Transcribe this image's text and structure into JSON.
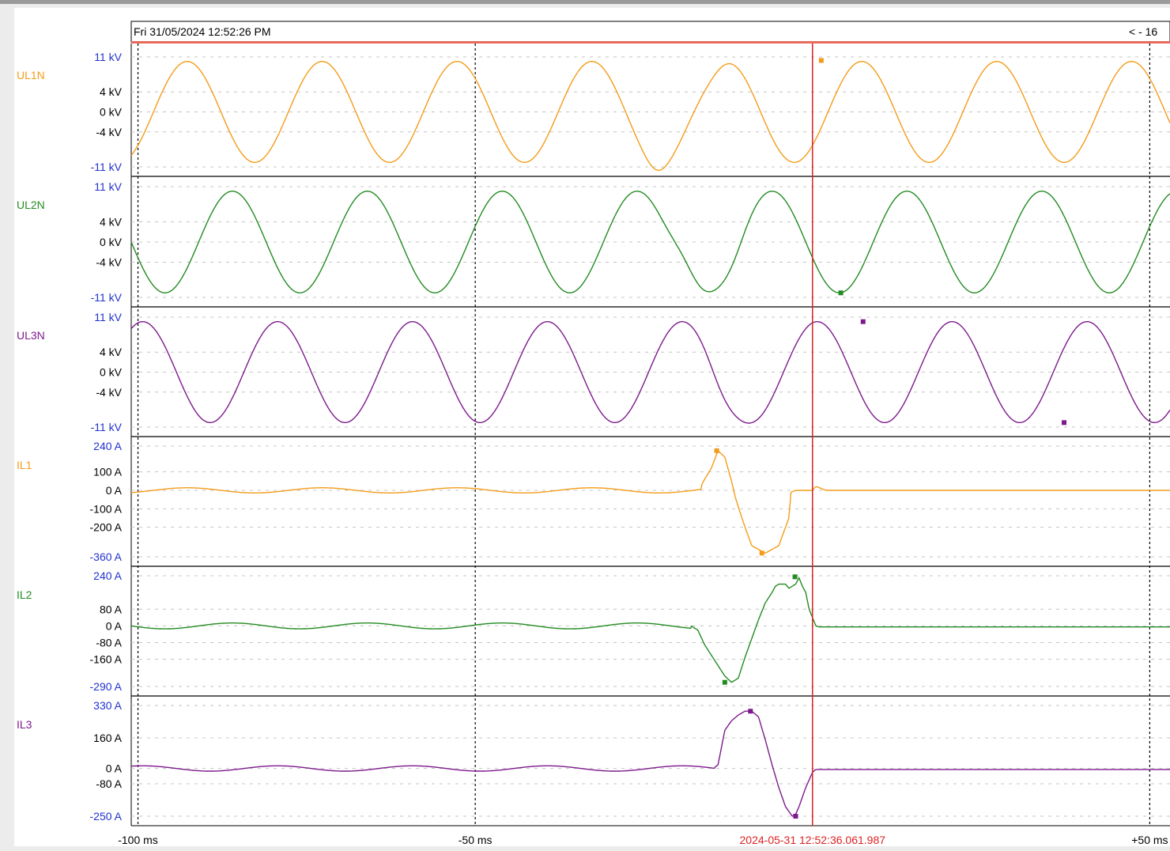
{
  "header": {
    "timestamp": "Fri 31/05/2024 12:52:26 PM",
    "nav": "< - 16"
  },
  "cursor": {
    "label": "2024-05-31 12:52:36.061.987",
    "time_ms": 0,
    "color": "#dd2222"
  },
  "chart_data": {
    "type": "line",
    "x_unit": "ms",
    "xlim": [
      -101,
      53
    ],
    "x_ticks": [
      {
        "value": -100,
        "label": "-100 ms"
      },
      {
        "value": -50,
        "label": "-50 ms"
      },
      {
        "value": 50,
        "label": "+50 ms"
      }
    ],
    "channels": [
      {
        "name": "UL1N",
        "color": "#f39c1a",
        "ylim": [
          -11,
          11
        ],
        "ticks": [
          {
            "v": 11,
            "label": "11 kV",
            "color": "#2233cc"
          },
          {
            "v": 4,
            "label": "4 kV",
            "color": "#000000"
          },
          {
            "v": 0,
            "label": "0 kV",
            "color": "#000000"
          },
          {
            "v": -4,
            "label": "-4 kV",
            "color": "#000000"
          },
          {
            "v": -11,
            "label": "-11 kV",
            "color": "#2233cc"
          }
        ],
        "kind": "sine",
        "amp": 10.1,
        "period": 20,
        "phase": -17.7,
        "dist": [
          {
            "x": -23,
            "y": -1.6,
            "w": 2.2
          },
          {
            "x": -15,
            "y": -1.2,
            "w": 2.5
          }
        ],
        "markers": [
          {
            "x": 1.3,
            "y": 10.3
          }
        ]
      },
      {
        "name": "UL2N",
        "color": "#228b22",
        "ylim": [
          -11,
          11
        ],
        "ticks": [
          {
            "v": 11,
            "label": "11 kV",
            "color": "#2233cc"
          },
          {
            "v": 4,
            "label": "4 kV",
            "color": "#000000"
          },
          {
            "v": 0,
            "label": "0 kV",
            "color": "#000000"
          },
          {
            "v": -4,
            "label": "-4 kV",
            "color": "#000000"
          },
          {
            "v": -11,
            "label": "-11 kV",
            "color": "#2233cc"
          }
        ],
        "kind": "sine",
        "amp": 10.1,
        "period": 20,
        "phase": -11.0,
        "dist": [
          {
            "x": -19,
            "y": 2.6,
            "w": 2.5
          },
          {
            "x": -12,
            "y": -1.8,
            "w": 2.5
          }
        ],
        "markers": [
          {
            "x": 4.2,
            "y": -10.1
          }
        ]
      },
      {
        "name": "UL3N",
        "color": "#7d1a8c",
        "ylim": [
          -11,
          11
        ],
        "ticks": [
          {
            "v": 11,
            "label": "11 kV",
            "color": "#2233cc"
          },
          {
            "v": 4,
            "label": "4 kV",
            "color": "#000000"
          },
          {
            "v": 0,
            "label": "0 kV",
            "color": "#000000"
          },
          {
            "v": -4,
            "label": "-4 kV",
            "color": "#000000"
          },
          {
            "v": -11,
            "label": "-11 kV",
            "color": "#2233cc"
          }
        ],
        "kind": "sine",
        "amp": 10.1,
        "period": 20,
        "phase": -4.3,
        "dist": [
          {
            "x": -13.5,
            "y": -1.6,
            "w": 2.5
          }
        ],
        "markers": [
          {
            "x": 7.5,
            "y": 10.1
          },
          {
            "x": 37.3,
            "y": -10.1
          }
        ]
      },
      {
        "name": "IL1",
        "color": "#f39c1a",
        "ylim": [
          -360,
          240
        ],
        "ticks": [
          {
            "v": 240,
            "label": "240 A",
            "color": "#2233cc"
          },
          {
            "v": 100,
            "label": "100 A",
            "color": "#000000"
          },
          {
            "v": 0,
            "label": "0 A",
            "color": "#000000"
          },
          {
            "v": -100,
            "label": "-100 A",
            "color": "#000000"
          },
          {
            "v": -200,
            "label": "-200 A",
            "color": "#000000"
          },
          {
            "v": -360,
            "label": "-360 A",
            "color": "#2233cc"
          }
        ],
        "kind": "pts",
        "base_amp": 14,
        "base_phase": -17.7,
        "fault": [
          -101,
          -100,
          -30,
          -17,
          -16.5,
          -16,
          -15,
          -14,
          -13,
          -12,
          -11.5,
          -11,
          -10,
          -9,
          -7,
          -5,
          -3.5,
          -3.2,
          -2.5,
          -1.5,
          -0.5,
          0,
          0.3,
          0.6,
          2,
          53
        ],
        "fault_y": [
          null,
          null,
          null,
          null,
          25,
          60,
          120,
          215,
          180,
          50,
          -30,
          -90,
          -200,
          -300,
          -340,
          -300,
          -150,
          -10,
          0,
          0,
          0,
          0,
          15,
          20,
          0,
          0
        ],
        "markers": [
          {
            "x": -14.2,
            "y": 215
          },
          {
            "x": -7.5,
            "y": -340
          }
        ]
      },
      {
        "name": "IL2",
        "color": "#228b22",
        "ylim": [
          -290,
          240
        ],
        "ticks": [
          {
            "v": 240,
            "label": "240 A",
            "color": "#2233cc"
          },
          {
            "v": 80,
            "label": "80 A",
            "color": "#000000"
          },
          {
            "v": 0,
            "label": "0 A",
            "color": "#000000"
          },
          {
            "v": -80,
            "label": "-80 A",
            "color": "#000000"
          },
          {
            "v": -160,
            "label": "-160 A",
            "color": "#000000"
          },
          {
            "v": -290,
            "label": "-290 A",
            "color": "#2233cc"
          }
        ],
        "kind": "pts",
        "base_amp": 14,
        "base_phase": -11.0,
        "fault": [
          -101,
          -100,
          -20,
          -18,
          -17,
          -16,
          -15,
          -14,
          -13,
          -12,
          -11,
          -10,
          -9,
          -8,
          -7,
          -6,
          -5.5,
          -5,
          -4,
          -3.5,
          -3,
          -2.5,
          -2,
          -1.5,
          -1,
          -0.5,
          0.5,
          1,
          53
        ],
        "fault_y": [
          null,
          null,
          null,
          0,
          -20,
          -90,
          -140,
          -190,
          -240,
          -270,
          -250,
          -150,
          -60,
          30,
          110,
          160,
          190,
          200,
          200,
          180,
          190,
          200,
          230,
          190,
          160,
          80,
          0,
          -5,
          -5
        ],
        "markers": [
          {
            "x": -13,
            "y": -270
          },
          {
            "x": -2.6,
            "y": 235
          }
        ]
      },
      {
        "name": "IL3",
        "color": "#7d1a8c",
        "ylim": [
          -250,
          330
        ],
        "ticks": [
          {
            "v": 330,
            "label": "330 A",
            "color": "#2233cc"
          },
          {
            "v": 160,
            "label": "160 A",
            "color": "#000000"
          },
          {
            "v": 0,
            "label": "0 A",
            "color": "#000000"
          },
          {
            "v": -80,
            "label": "-80 A",
            "color": "#000000"
          },
          {
            "v": -250,
            "label": "-250 A",
            "color": "#2233cc"
          }
        ],
        "kind": "pts",
        "base_amp": 14,
        "base_phase": -4.3,
        "fault": [
          -101,
          -100,
          -14.5,
          -14,
          -13.5,
          -13,
          -12,
          -11,
          -10,
          -9,
          -8,
          -7,
          -6,
          -5,
          -4,
          -3,
          -2.5,
          -2,
          -1,
          0,
          0.5,
          1,
          53
        ],
        "fault_y": [
          null,
          null,
          5,
          20,
          110,
          200,
          250,
          280,
          300,
          300,
          270,
          150,
          20,
          -100,
          -200,
          -250,
          -240,
          -200,
          -100,
          -20,
          -5,
          -5,
          -5
        ],
        "markers": [
          {
            "x": -9.2,
            "y": 300
          },
          {
            "x": -2.5,
            "y": -250
          }
        ]
      }
    ]
  }
}
